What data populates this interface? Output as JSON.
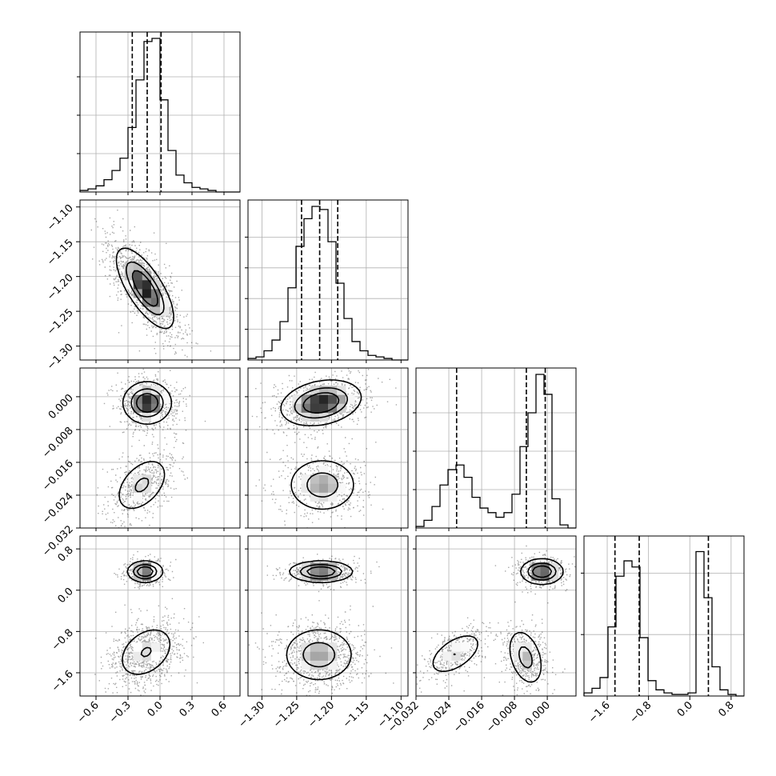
{
  "chart_data": {
    "type": "corner",
    "title": "",
    "dimensions": [
      {
        "range": [
          -0.75,
          0.75
        ],
        "ticks": [
          -0.6,
          -0.3,
          0.0,
          0.3,
          0.6
        ],
        "tick_labels": [
          "−0.6",
          "−0.3",
          "0.0",
          "0.3",
          "0.6"
        ],
        "quantiles": [
          -0.26,
          -0.12,
          0.01
        ],
        "histogram": {
          "bin_edges": [
            -0.75,
            -0.675,
            -0.6,
            -0.525,
            -0.45,
            -0.375,
            -0.3,
            -0.225,
            -0.15,
            -0.075,
            0.0,
            0.075,
            0.15,
            0.225,
            0.3,
            0.375,
            0.45,
            0.525,
            0.6,
            0.675,
            0.75
          ],
          "counts": [
            0.01,
            0.02,
            0.04,
            0.08,
            0.14,
            0.22,
            0.42,
            0.73,
            0.98,
            1.0,
            0.6,
            0.27,
            0.11,
            0.06,
            0.03,
            0.02,
            0.01,
            0.0,
            0.0,
            0.0
          ],
          "ticks": [
            0.25,
            0.5,
            0.75
          ]
        }
      },
      {
        "range": [
          -1.32,
          -1.09
        ],
        "ticks": [
          -1.3,
          -1.25,
          -1.2,
          -1.15,
          -1.1
        ],
        "tick_labels": [
          "−1.30",
          "−1.25",
          "−1.20",
          "−1.15",
          "−1.10"
        ],
        "quantiles": [
          -1.243,
          -1.217,
          -1.191
        ],
        "histogram": {
          "bin_edges": [
            -1.32,
            -1.3085,
            -1.297,
            -1.2855,
            -1.274,
            -1.2625,
            -1.251,
            -1.2395,
            -1.228,
            -1.2165,
            -1.205,
            -1.1935,
            -1.182,
            -1.1705,
            -1.159,
            -1.1475,
            -1.136,
            -1.1245,
            -1.113,
            -1.1015,
            -1.09
          ],
          "counts": [
            0.01,
            0.02,
            0.06,
            0.13,
            0.25,
            0.47,
            0.74,
            0.92,
            1.0,
            0.98,
            0.77,
            0.5,
            0.27,
            0.12,
            0.06,
            0.03,
            0.02,
            0.01,
            0.0,
            0.0
          ],
          "ticks": [
            0.2,
            0.4,
            0.6,
            0.8
          ]
        }
      },
      {
        "range": [
          -0.032,
          0.007
        ],
        "ticks": [
          -0.032,
          -0.024,
          -0.016,
          -0.008,
          0.0
        ],
        "tick_labels": [
          "−0.032",
          "−0.024",
          "−0.016",
          "−0.008",
          "0.000"
        ],
        "quantiles": [
          -0.0221,
          -0.0051,
          -0.0005
        ],
        "histogram": {
          "bin_edges": [
            -0.032,
            -0.03005,
            -0.0281,
            -0.02615,
            -0.0242,
            -0.02225,
            -0.0203,
            -0.01835,
            -0.0164,
            -0.01445,
            -0.0125,
            -0.01055,
            -0.0086,
            -0.00665,
            -0.0047,
            -0.00275,
            -0.0008,
            0.00115,
            0.0031,
            0.00505,
            0.007
          ],
          "counts": [
            0.01,
            0.05,
            0.14,
            0.28,
            0.38,
            0.41,
            0.33,
            0.2,
            0.13,
            0.1,
            0.07,
            0.1,
            0.22,
            0.53,
            0.75,
            1.0,
            0.87,
            0.19,
            0.02,
            0.0
          ],
          "ticks": [
            0.25,
            0.5,
            0.75
          ]
        }
      },
      {
        "range": [
          -2.05,
          1.05
        ],
        "ticks": [
          -1.6,
          -0.8,
          0.0,
          0.8
        ],
        "tick_labels": [
          "−1.6",
          "−0.8",
          "0.0",
          "0.8"
        ],
        "quantiles": [
          -1.45,
          -0.98,
          0.36
        ],
        "histogram": {
          "bin_edges": [
            -2.05,
            -1.895,
            -1.74,
            -1.585,
            -1.43,
            -1.275,
            -1.12,
            -0.965,
            -0.81,
            -0.655,
            -0.5,
            -0.345,
            -0.19,
            -0.035,
            0.12,
            0.275,
            0.43,
            0.585,
            0.74,
            0.895,
            1.05
          ],
          "counts": [
            0.02,
            0.05,
            0.12,
            0.45,
            0.78,
            0.88,
            0.84,
            0.38,
            0.1,
            0.04,
            0.02,
            0.01,
            0.01,
            0.02,
            0.94,
            0.64,
            0.19,
            0.04,
            0.01,
            0.0
          ],
          "ticks": [
            0.4,
            0.8
          ]
        }
      }
    ],
    "pairs": [
      {
        "row": 1,
        "col": 0,
        "modes": [
          {
            "cx": -0.14,
            "cy": -1.217,
            "sx": 0.13,
            "sy": 0.028,
            "rho": -0.72,
            "w": 1.0
          }
        ]
      },
      {
        "row": 2,
        "col": 0,
        "modes": [
          {
            "cx": -0.12,
            "cy": -0.0015,
            "sx": 0.11,
            "sy": 0.0025,
            "rho": 0.0,
            "w": 0.6
          },
          {
            "cx": -0.17,
            "cy": -0.0215,
            "sx": 0.13,
            "sy": 0.0035,
            "rho": 0.45,
            "w": 0.4
          }
        ]
      },
      {
        "row": 2,
        "col": 1,
        "modes": [
          {
            "cx": -1.215,
            "cy": -0.0015,
            "sx": 0.028,
            "sy": 0.0027,
            "rho": 0.25,
            "w": 0.6
          },
          {
            "cx": -1.213,
            "cy": -0.0215,
            "sx": 0.025,
            "sy": 0.0033,
            "rho": 0.0,
            "w": 0.4
          }
        ]
      },
      {
        "row": 3,
        "col": 0,
        "modes": [
          {
            "cx": -0.14,
            "cy": 0.36,
            "sx": 0.08,
            "sy": 0.1,
            "rho": 0.0,
            "w": 0.35
          },
          {
            "cx": -0.13,
            "cy": -1.2,
            "sx": 0.14,
            "sy": 0.27,
            "rho": 0.35,
            "w": 0.65
          }
        ]
      },
      {
        "row": 3,
        "col": 1,
        "modes": [
          {
            "cx": -1.215,
            "cy": 0.36,
            "sx": 0.022,
            "sy": 0.1,
            "rho": 0.0,
            "w": 0.35
          },
          {
            "cx": -1.218,
            "cy": -1.25,
            "sx": 0.026,
            "sy": 0.27,
            "rho": 0.0,
            "w": 0.65
          }
        ]
      },
      {
        "row": 3,
        "col": 2,
        "modes": [
          {
            "cx": -0.0013,
            "cy": 0.36,
            "sx": 0.0025,
            "sy": 0.12,
            "rho": 0.0,
            "w": 0.35
          },
          {
            "cx": -0.0224,
            "cy": -1.23,
            "sx": 0.0035,
            "sy": 0.22,
            "rho": 0.55,
            "w": 0.3
          },
          {
            "cx": -0.0053,
            "cy": -1.3,
            "sx": 0.0022,
            "sy": 0.28,
            "rho": -0.35,
            "w": 0.35
          }
        ]
      }
    ]
  }
}
